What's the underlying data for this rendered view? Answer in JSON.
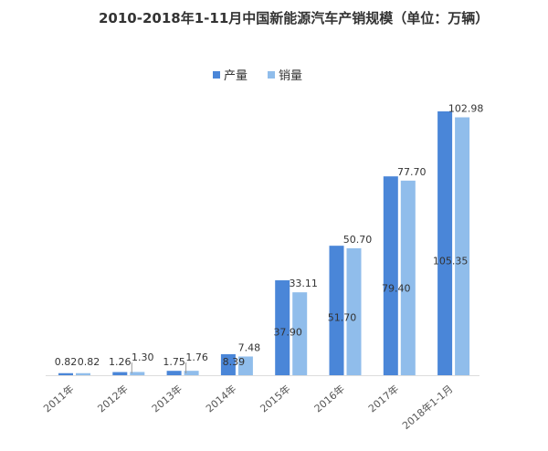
{
  "chart_data": {
    "type": "bar",
    "title": "2010-2018年1-11月中国新能源汽车产销规模（单位：万辆）",
    "categories": [
      "2011年",
      "2012年",
      "2013年",
      "2014年",
      "2015年",
      "2016年",
      "2017年",
      "2018年1-1月"
    ],
    "series": [
      {
        "name": "产量",
        "values": [
          0.82,
          1.26,
          1.75,
          8.39,
          37.9,
          51.7,
          79.4,
          105.35
        ],
        "labels": [
          "0.82",
          "1.26",
          "1.75",
          "8.39",
          "37.90",
          "51.70",
          "79.40",
          "105.35"
        ]
      },
      {
        "name": "销量",
        "values": [
          0.82,
          1.3,
          1.76,
          7.48,
          33.11,
          50.7,
          77.7,
          102.98
        ],
        "labels": [
          "0.82",
          "1.30",
          "1.76",
          "7.48",
          "33.11",
          "50.70",
          "77.70",
          "102.98"
        ]
      }
    ],
    "ylim": [
      0,
      110
    ],
    "grid": false,
    "legend_position": "top",
    "colors": [
      "#4a86d8",
      "#90bdeb"
    ]
  }
}
